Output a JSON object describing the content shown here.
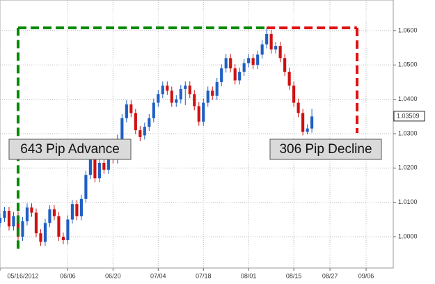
{
  "chart_data": {
    "type": "candlestick",
    "x": [
      "2012-05-16",
      "2012-05-17",
      "2012-05-18",
      "2012-05-21",
      "2012-05-22",
      "2012-05-23",
      "2012-05-24",
      "2012-05-25",
      "2012-05-28",
      "2012-05-29",
      "2012-05-30",
      "2012-05-31",
      "2012-06-01",
      "2012-06-04",
      "2012-06-05",
      "2012-06-06",
      "2012-06-07",
      "2012-06-08",
      "2012-06-11",
      "2012-06-12",
      "2012-06-13",
      "2012-06-14",
      "2012-06-15",
      "2012-06-18",
      "2012-06-19",
      "2012-06-20",
      "2012-06-21",
      "2012-06-22",
      "2012-06-25",
      "2012-06-26",
      "2012-06-27",
      "2012-06-28",
      "2012-06-29",
      "2012-07-02",
      "2012-07-03",
      "2012-07-04",
      "2012-07-05",
      "2012-07-06",
      "2012-07-09",
      "2012-07-10",
      "2012-07-11",
      "2012-07-12",
      "2012-07-13",
      "2012-07-16",
      "2012-07-17",
      "2012-07-18",
      "2012-07-19",
      "2012-07-20",
      "2012-07-23",
      "2012-07-24",
      "2012-07-25",
      "2012-07-26",
      "2012-07-27",
      "2012-07-30",
      "2012-07-31",
      "2012-08-01",
      "2012-08-02",
      "2012-08-03",
      "2012-08-06",
      "2012-08-07",
      "2012-08-08",
      "2012-08-09",
      "2012-08-10",
      "2012-08-13",
      "2012-08-14",
      "2012-08-15",
      "2012-08-16",
      "2012-08-17",
      "2012-08-20",
      "2012-08-21"
    ],
    "open": [
      1.004,
      1.0055,
      1.0075,
      1.003,
      1.006,
      1.0,
      1.0045,
      1.0085,
      1.007,
      1.001,
      0.9985,
      1.004,
      1.008,
      1.006,
      1.0,
      0.999,
      1.005,
      1.0095,
      1.006,
      1.011,
      1.018,
      1.0225,
      1.017,
      1.0215,
      1.0195,
      1.024,
      1.0225,
      1.0285,
      1.0345,
      1.0385,
      1.036,
      1.031,
      1.0295,
      1.032,
      1.0345,
      1.039,
      1.0415,
      1.044,
      1.0425,
      1.039,
      1.04,
      1.043,
      1.044,
      1.0415,
      1.038,
      1.0335,
      1.039,
      1.0425,
      1.041,
      1.045,
      1.049,
      1.052,
      1.049,
      1.0455,
      1.048,
      1.0505,
      1.052,
      1.05,
      1.053,
      1.056,
      1.059,
      1.0545,
      1.0555,
      1.052,
      1.048,
      1.044,
      1.039,
      1.036,
      1.0305,
      1.0315
    ],
    "high": [
      1.0068,
      1.0087,
      1.0087,
      1.0072,
      1.0072,
      1.0057,
      1.0097,
      1.0097,
      1.0082,
      1.0022,
      1.0052,
      1.0092,
      1.0092,
      1.0072,
      1.0012,
      1.0062,
      1.0107,
      1.0107,
      1.0122,
      1.0192,
      1.0237,
      1.0237,
      1.0227,
      1.0227,
      1.0252,
      1.0252,
      1.0297,
      1.0357,
      1.0397,
      1.0397,
      1.0372,
      1.0322,
      1.0332,
      1.0357,
      1.0402,
      1.0427,
      1.0452,
      1.0452,
      1.0437,
      1.0412,
      1.0442,
      1.0452,
      1.0452,
      1.0427,
      1.0392,
      1.0402,
      1.0437,
      1.0437,
      1.0462,
      1.0502,
      1.0532,
      1.0532,
      1.0502,
      1.0492,
      1.0517,
      1.0532,
      1.0532,
      1.0542,
      1.0572,
      1.0608,
      1.0602,
      1.0567,
      1.0567,
      1.0532,
      1.0492,
      1.0452,
      1.0402,
      1.0372,
      1.0327,
      1.0372
    ],
    "low": [
      1.0028,
      1.0043,
      1.0018,
      1.0018,
      0.9965,
      0.9988,
      1.0033,
      1.0058,
      0.9998,
      0.9973,
      0.9973,
      1.0028,
      1.0048,
      0.9988,
      0.9978,
      0.9978,
      1.0038,
      1.0048,
      1.0048,
      1.0098,
      1.0168,
      1.0158,
      1.0158,
      1.0183,
      1.0183,
      1.0213,
      1.0213,
      1.0273,
      1.0333,
      1.0348,
      1.0298,
      1.0278,
      1.0283,
      1.0308,
      1.0333,
      1.0378,
      1.0403,
      1.0413,
      1.0378,
      1.0378,
      1.0388,
      1.0383,
      1.0403,
      1.0368,
      1.0323,
      1.0323,
      1.0378,
      1.0398,
      1.0398,
      1.0438,
      1.0478,
      1.0478,
      1.0443,
      1.0443,
      1.0468,
      1.0493,
      1.0488,
      1.0488,
      1.0518,
      1.0548,
      1.0533,
      1.0533,
      1.0508,
      1.0468,
      1.0428,
      1.0378,
      1.0348,
      1.0295,
      1.0298,
      1.0303
    ],
    "close": [
      1.0055,
      1.0075,
      1.003,
      1.006,
      1.0,
      1.0045,
      1.0085,
      1.007,
      1.001,
      0.9985,
      1.004,
      1.008,
      1.006,
      1.0,
      0.999,
      1.005,
      1.0095,
      1.006,
      1.011,
      1.018,
      1.0225,
      1.017,
      1.0215,
      1.0195,
      1.024,
      1.0225,
      1.0285,
      1.0345,
      1.0385,
      1.036,
      1.031,
      1.029,
      1.032,
      1.0345,
      1.039,
      1.0415,
      1.044,
      1.0425,
      1.039,
      1.04,
      1.043,
      1.044,
      1.0415,
      1.038,
      1.0335,
      1.039,
      1.0425,
      1.041,
      1.045,
      1.049,
      1.052,
      1.049,
      1.0455,
      1.048,
      1.0505,
      1.052,
      1.05,
      1.053,
      1.056,
      1.059,
      1.0545,
      1.0555,
      1.052,
      1.048,
      1.044,
      1.039,
      1.036,
      1.0305,
      1.0315,
      1.035
    ],
    "up_color": "#1f5fc4",
    "down_color": "#d01010",
    "xlim": [
      "2012-05-16",
      "2012-09-14"
    ],
    "xticks": [
      {
        "value": "2012-05-16",
        "label": "05/16/2012"
      },
      {
        "value": "2012-06-06",
        "label": "06/06"
      },
      {
        "value": "2012-06-20",
        "label": "06/20"
      },
      {
        "value": "2012-07-04",
        "label": "07/04"
      },
      {
        "value": "2012-07-18",
        "label": "07/18"
      },
      {
        "value": "2012-08-01",
        "label": "08/01"
      },
      {
        "value": "2012-08-15",
        "label": "08/15"
      },
      {
        "value": "2012-08-27",
        "label": "08/27"
      },
      {
        "value": "2012-09-06",
        "label": "09/06"
      }
    ],
    "ylim": [
      0.9909,
      1.0689
    ],
    "yticks": [
      {
        "value": 1.0,
        "label": "1.0000"
      },
      {
        "value": 1.01,
        "label": "1.0100"
      },
      {
        "value": 1.02,
        "label": "1.0200"
      },
      {
        "value": 1.03,
        "label": "1.0300"
      },
      {
        "value": 1.04,
        "label": "1.0400"
      },
      {
        "value": 1.05,
        "label": "1.0500"
      },
      {
        "value": 1.06,
        "label": "1.0600"
      }
    ],
    "grid": true,
    "last_price": {
      "value": 1.03509,
      "label": "1.03509"
    },
    "annotations": [
      {
        "label": "643 Pip Advance",
        "from": 0.9965,
        "to": 1.0608,
        "start": "2012-05-22",
        "end": "2012-08-07",
        "color": "#008a00"
      },
      {
        "label": "306 Pip Decline",
        "from": 1.0608,
        "to": 1.0302,
        "start": "2012-08-07",
        "end": "2012-09-04",
        "color": "#e01010"
      }
    ]
  }
}
